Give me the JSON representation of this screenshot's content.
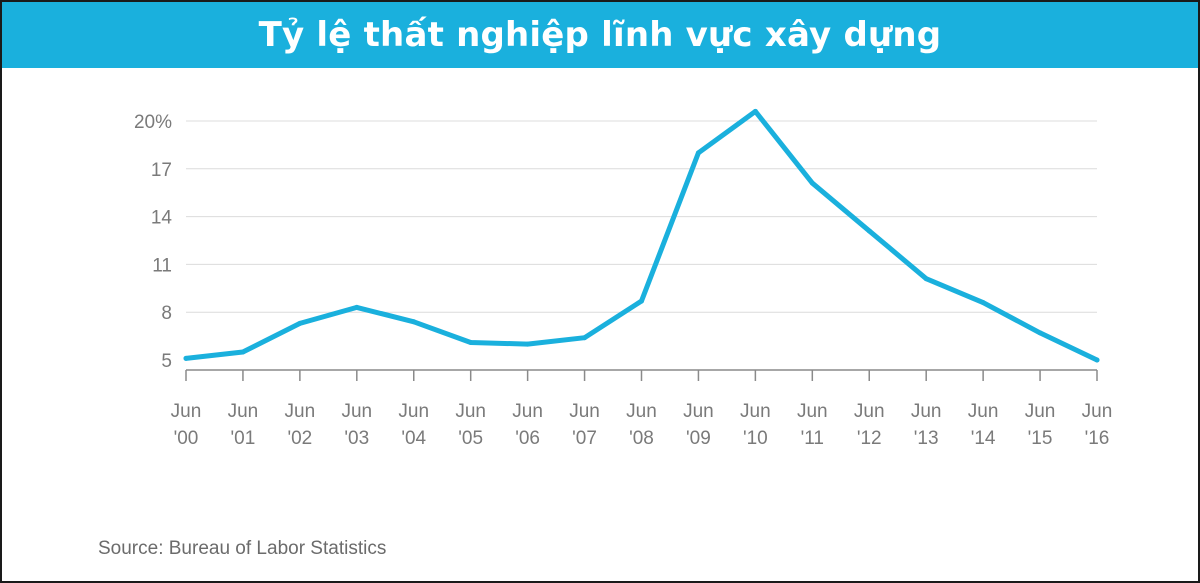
{
  "chart_data": {
    "type": "line",
    "title": "Tỷ lệ thất nghiệp lĩnh vực xây dựng",
    "source": "Source: Bureau of Labor Statistics",
    "x": [
      "Jun '00",
      "Jun '01",
      "Jun '02",
      "Jun '03",
      "Jun '04",
      "Jun '05",
      "Jun '06",
      "Jun '07",
      "Jun '08",
      "Jun '09",
      "Jun '10",
      "Jun '11",
      "Jun '12",
      "Jun '13",
      "Jun '14",
      "Jun '15",
      "Jun '16"
    ],
    "x_tick_labels": [
      [
        "Jun",
        "'00"
      ],
      [
        "Jun",
        "'01"
      ],
      [
        "Jun",
        "'02"
      ],
      [
        "Jun",
        "'03"
      ],
      [
        "Jun",
        "'04"
      ],
      [
        "Jun",
        "'05"
      ],
      [
        "Jun",
        "'06"
      ],
      [
        "Jun",
        "'07"
      ],
      [
        "Jun",
        "'08"
      ],
      [
        "Jun",
        "'09"
      ],
      [
        "Jun",
        "'10"
      ],
      [
        "Jun",
        "'11"
      ],
      [
        "Jun",
        "'12"
      ],
      [
        "Jun",
        "'13"
      ],
      [
        "Jun",
        "'14"
      ],
      [
        "Jun",
        "'15"
      ],
      [
        "Jun",
        "'16"
      ]
    ],
    "series": [
      {
        "values": [
          5.1,
          5.5,
          7.3,
          8.3,
          7.4,
          6.1,
          6.0,
          6.4,
          8.7,
          18.0,
          20.6,
          16.1,
          13.1,
          10.1,
          8.6,
          6.7,
          5.0
        ]
      }
    ],
    "y_ticks": [
      5,
      8,
      11,
      14,
      17,
      20
    ],
    "y_tick_labels": [
      "5",
      "8",
      "11",
      "14",
      "17",
      "20%"
    ],
    "ylim": [
      5,
      20
    ],
    "grid": true,
    "line_color": "#1ab0dd",
    "title_bar_color": "#1ab0dd"
  }
}
